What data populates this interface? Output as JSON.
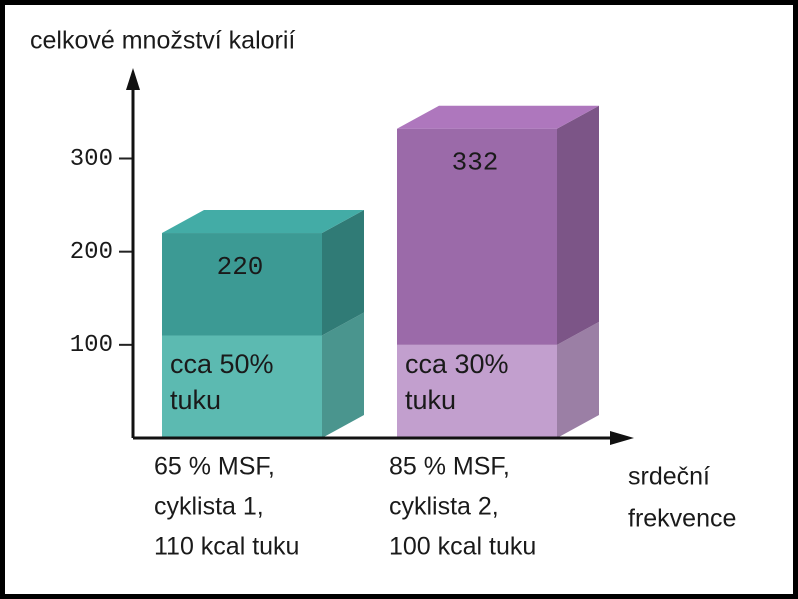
{
  "chart_data": {
    "type": "stacked_bar_3d",
    "y_label": "celkové množství kalorií",
    "x_label": [
      "srdeční",
      "frekvence"
    ],
    "categories": [
      [
        "65 % MSF,",
        "cyklista 1,",
        "110 kcal tuku"
      ],
      [
        "85 % MSF,",
        "cyklista 2,",
        "100 kcal tuku"
      ]
    ],
    "series": [
      {
        "colors": [
          "#5cbab1",
          "#c29fce"
        ],
        "values": [
          110,
          100
        ],
        "segment_labels": [
          [
            "cca 50%",
            "tuku"
          ],
          [
            "cca 30%",
            "tuku"
          ]
        ]
      },
      {
        "colors": [
          "#3c9a94",
          "#9b6aa9"
        ],
        "values": [
          110,
          232
        ]
      }
    ],
    "totals": [
      220,
      332
    ],
    "ylim": [
      0,
      395
    ],
    "yticks": [
      100,
      200,
      300
    ]
  }
}
